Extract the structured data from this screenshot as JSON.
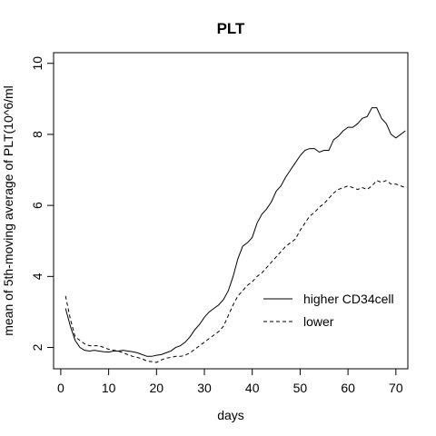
{
  "chart_data": {
    "type": "line",
    "title": "PLT",
    "xlabel": "days",
    "ylabel": "mean of 5th-moving average of PLT(10^6/ml",
    "xlim": [
      -1.5,
      72.5
    ],
    "ylim": [
      1.4,
      10.3
    ],
    "xticks": [
      0,
      10,
      20,
      30,
      40,
      50,
      60,
      70
    ],
    "yticks": [
      2,
      4,
      6,
      8,
      10
    ],
    "legend_position": "inside-right",
    "grid": false,
    "series": [
      {
        "name": "higher CD34cell",
        "line_style": "solid",
        "x": [
          1,
          2,
          3,
          4,
          5,
          6,
          7,
          8,
          9,
          10,
          11,
          12,
          13,
          14,
          15,
          16,
          17,
          18,
          19,
          20,
          21,
          22,
          23,
          24,
          25,
          26,
          27,
          28,
          29,
          30,
          31,
          32,
          33,
          34,
          35,
          36,
          37,
          38,
          39,
          40,
          41,
          42,
          43,
          44,
          45,
          46,
          47,
          48,
          49,
          50,
          51,
          52,
          53,
          54,
          55,
          56,
          57,
          58,
          59,
          60,
          61,
          62,
          63,
          64,
          65,
          66,
          67,
          68,
          69,
          70,
          71,
          72
        ],
        "values": [
          3.1,
          2.6,
          2.2,
          2.0,
          1.92,
          1.9,
          1.92,
          1.9,
          1.88,
          1.87,
          1.9,
          1.9,
          1.92,
          1.9,
          1.88,
          1.85,
          1.8,
          1.75,
          1.75,
          1.78,
          1.8,
          1.85,
          1.9,
          2.0,
          2.05,
          2.15,
          2.3,
          2.5,
          2.65,
          2.85,
          3.0,
          3.1,
          3.2,
          3.35,
          3.6,
          4.0,
          4.5,
          4.85,
          4.95,
          5.1,
          5.5,
          5.75,
          5.9,
          6.1,
          6.4,
          6.55,
          6.8,
          7.0,
          7.2,
          7.4,
          7.55,
          7.6,
          7.6,
          7.5,
          7.55,
          7.55,
          7.85,
          7.95,
          8.1,
          8.2,
          8.2,
          8.3,
          8.45,
          8.5,
          8.75,
          8.75,
          8.45,
          8.3,
          8.0,
          7.9,
          8.0,
          8.1
        ]
      },
      {
        "name": "lower",
        "line_style": "dashed",
        "x": [
          1,
          2,
          3,
          4,
          5,
          6,
          7,
          8,
          9,
          10,
          11,
          12,
          13,
          14,
          15,
          16,
          17,
          18,
          19,
          20,
          21,
          22,
          23,
          24,
          25,
          26,
          27,
          28,
          29,
          30,
          31,
          32,
          33,
          34,
          35,
          36,
          37,
          38,
          39,
          40,
          41,
          42,
          43,
          44,
          45,
          46,
          47,
          48,
          49,
          50,
          51,
          52,
          53,
          54,
          55,
          56,
          57,
          58,
          59,
          60,
          61,
          62,
          63,
          64,
          65,
          66,
          67,
          68,
          69,
          70,
          71,
          72
        ],
        "values": [
          3.45,
          2.8,
          2.3,
          2.2,
          2.1,
          2.05,
          2.05,
          2.05,
          2.0,
          1.95,
          1.92,
          1.9,
          1.85,
          1.8,
          1.75,
          1.72,
          1.68,
          1.62,
          1.6,
          1.58,
          1.65,
          1.7,
          1.72,
          1.75,
          1.75,
          1.78,
          1.85,
          1.95,
          2.05,
          2.15,
          2.25,
          2.35,
          2.45,
          2.6,
          2.9,
          3.2,
          3.45,
          3.6,
          3.75,
          3.85,
          4.0,
          4.1,
          4.25,
          4.4,
          4.55,
          4.7,
          4.85,
          4.95,
          5.05,
          5.3,
          5.5,
          5.7,
          5.8,
          5.95,
          6.05,
          6.2,
          6.35,
          6.45,
          6.5,
          6.55,
          6.5,
          6.45,
          6.5,
          6.45,
          6.55,
          6.7,
          6.65,
          6.7,
          6.6,
          6.6,
          6.55,
          6.5
        ]
      }
    ]
  }
}
